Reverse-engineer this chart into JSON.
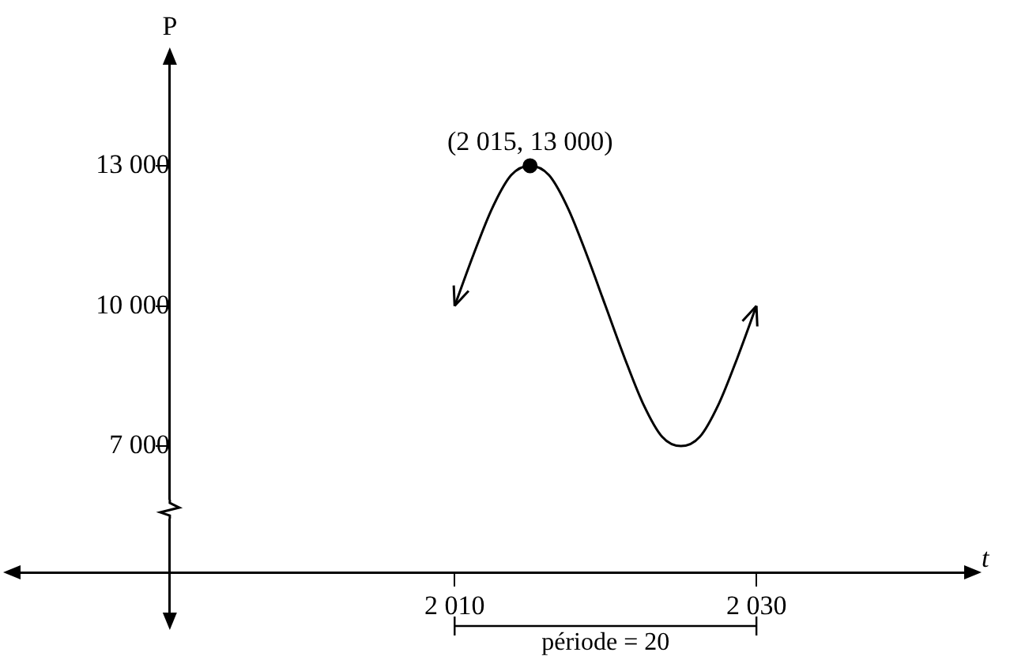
{
  "chart_data": {
    "type": "line",
    "xlabel": "t",
    "ylabel": "P",
    "xlim": [
      1980.5,
      2044.5
    ],
    "ylim": [
      3200,
      15400
    ],
    "xticks": [
      {
        "value": 2010,
        "label": "2 010"
      },
      {
        "value": 2030,
        "label": "2 030"
      }
    ],
    "yticks": [
      {
        "value": 7000,
        "label": "7 000"
      },
      {
        "value": 10000,
        "label": "10 000"
      },
      {
        "value": 13000,
        "label": "13 000"
      }
    ],
    "grid": false,
    "legend": false,
    "series": [
      {
        "type": "line",
        "color": "#000000",
        "marker": "none",
        "line_style": "solid",
        "x": [
          2010,
          2011.25,
          2012.5,
          2013.75,
          2015,
          2016.25,
          2017.5,
          2018.75,
          2020,
          2021.25,
          2022.5,
          2023.75,
          2025,
          2026.25,
          2027.5,
          2028.75,
          2030
        ],
        "values": [
          10000,
          11100,
          12100,
          12800,
          13000,
          12800,
          12100,
          11100,
          10000,
          8900,
          7900,
          7200,
          7000,
          7200,
          7900,
          8900,
          10000
        ]
      },
      {
        "type": "scatter",
        "color": "#000000",
        "marker": "circle",
        "x": [
          2015
        ],
        "values": [
          13000
        ]
      }
    ],
    "annotations": [
      {
        "text": "(2 015, 13 000)",
        "x": 2015,
        "y": 13000
      },
      "période = 20"
    ]
  }
}
